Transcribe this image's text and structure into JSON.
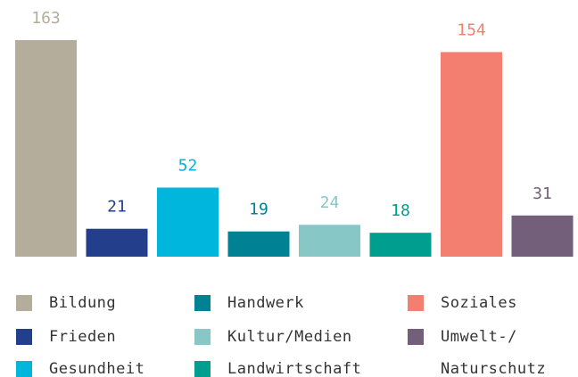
{
  "chart_data": {
    "type": "bar",
    "categories": [
      "Bildung",
      "Frieden",
      "Gesundheit",
      "Handwerk",
      "Kultur/Medien",
      "Landwirtschaft",
      "Soziales",
      "Umwelt-/\nNaturschutz"
    ],
    "values": [
      163,
      21,
      52,
      19,
      24,
      18,
      154,
      31
    ],
    "colors": [
      "#b5ad9c",
      "#233e8b",
      "#00b6dd",
      "#008295",
      "#87c8c6",
      "#009e8e",
      "#f37f70",
      "#735f79"
    ]
  }
}
